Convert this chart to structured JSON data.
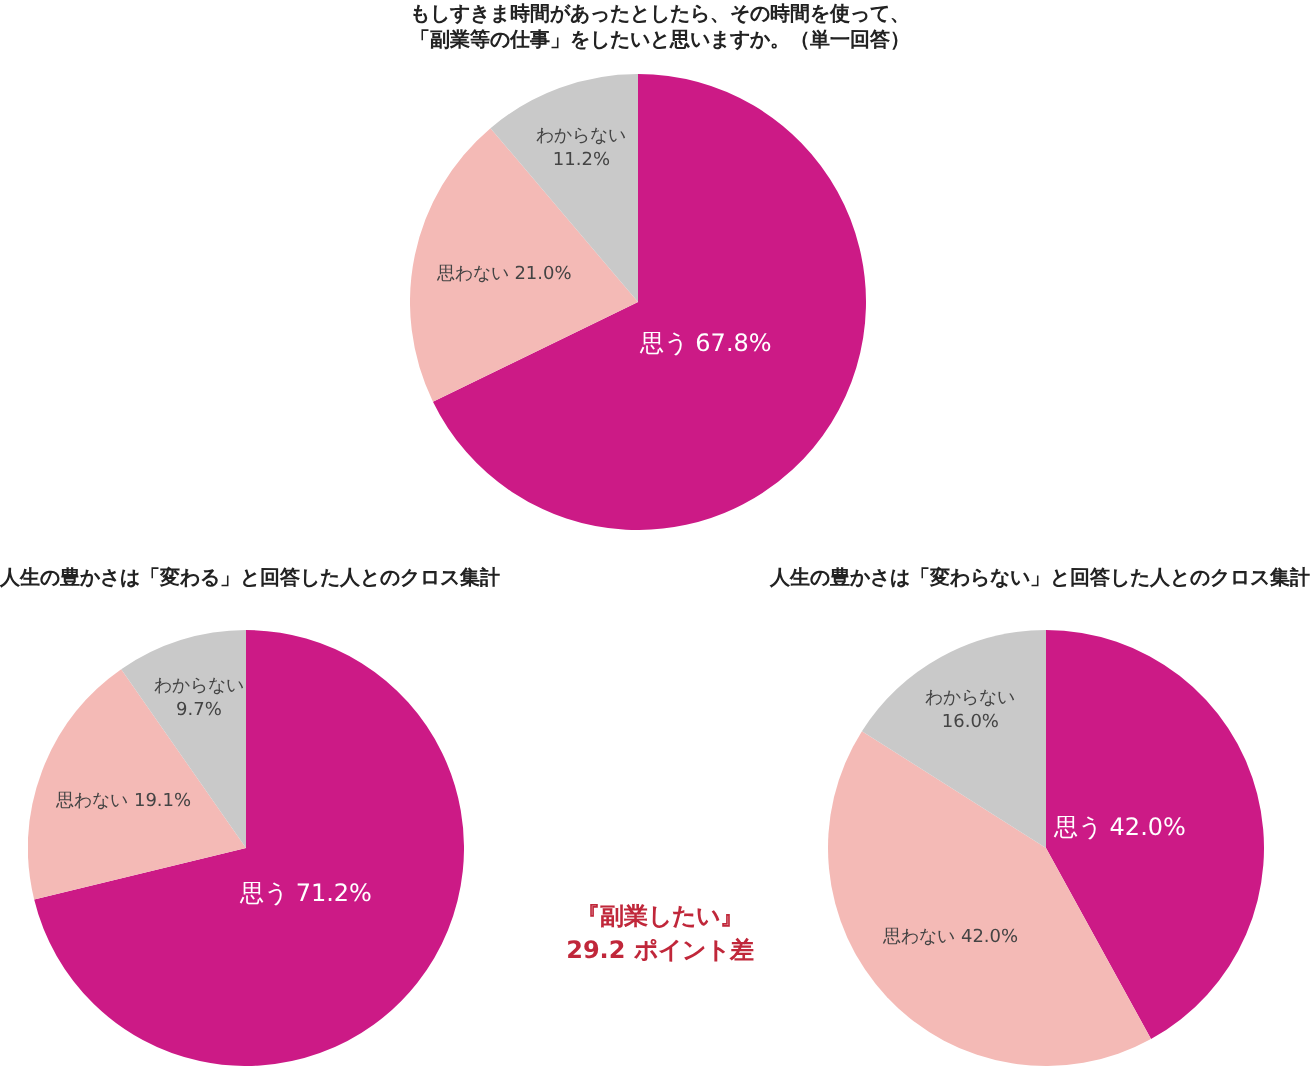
{
  "chart_data": [
    {
      "type": "pie",
      "title": "もしすきま時間があったとしたら、その時間を使って、「副業等の仕事」をしたいと思いますか。（単一回答）",
      "categories": [
        "思う",
        "思わない",
        "わからない"
      ],
      "values": [
        67.8,
        21.0,
        11.2
      ],
      "colors": [
        "#cc1a86",
        "#f4bab6",
        "#c9c9c9"
      ],
      "value_labels": [
        "67.8%",
        "21.0%",
        "11.2%"
      ],
      "legend": false
    },
    {
      "type": "pie",
      "title": "人生の豊かさは「変わる」と回答した人とのクロス集計",
      "categories": [
        "思う",
        "思わない",
        "わからない"
      ],
      "values": [
        71.2,
        19.1,
        9.7
      ],
      "colors": [
        "#cc1a86",
        "#f4bab6",
        "#c9c9c9"
      ],
      "value_labels": [
        "71.2%",
        "19.1%",
        "9.7%"
      ],
      "legend": false,
      "annotations": [
        "『副業したい』\n29.2 ポイント差"
      ]
    },
    {
      "type": "pie",
      "title": "人生の豊かさは「変わらない」と回答した人とのクロス集計",
      "categories": [
        "思う",
        "思わない",
        "わからない"
      ],
      "values": [
        42.0,
        42.0,
        16.0
      ],
      "colors": [
        "#cc1a86",
        "#f4bab6",
        "#c9c9c9"
      ],
      "value_labels": [
        "42.0%",
        "42.0%",
        "16.0%"
      ],
      "legend": false
    }
  ]
}
